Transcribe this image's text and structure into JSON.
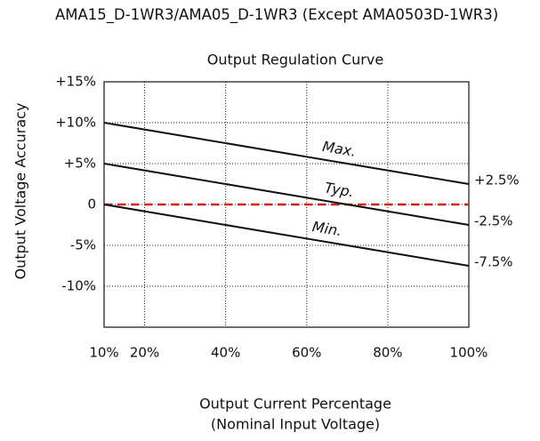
{
  "chart_data": {
    "type": "line",
    "title": "AMA15_D-1WR3/AMA05_D-1WR3 (Except AMA0503D-1WR3)",
    "subtitle": "Output Regulation Curve",
    "ylabel": "Output Voltage Accuracy",
    "xlabel": [
      "Output Current Percentage",
      "(Nominal Input Voltage)"
    ],
    "xlim": [
      10,
      100
    ],
    "ylim": [
      -15,
      15
    ],
    "xticks": [
      {
        "value": 10,
        "label": "10%"
      },
      {
        "value": 20,
        "label": "20%"
      },
      {
        "value": 40,
        "label": "40%"
      },
      {
        "value": 60,
        "label": "60%"
      },
      {
        "value": 80,
        "label": "80%"
      },
      {
        "value": 100,
        "label": "100%"
      }
    ],
    "yticks": [
      {
        "value": 15,
        "label": "+15%"
      },
      {
        "value": 10,
        "label": "+10%"
      },
      {
        "value": 5,
        "label": "+5%"
      },
      0,
      {
        "value": -5,
        "label": "-5%"
      },
      {
        "value": -10,
        "label": "-10%"
      }
    ],
    "grid": true,
    "reference_line": {
      "value": 0,
      "color": "#d42020"
    },
    "x": [
      10,
      100
    ],
    "series": [
      {
        "name": "Max.",
        "color": "#111111",
        "values": [
          10,
          2.5
        ],
        "value_labels": [
          null,
          "+2.5%"
        ]
      },
      {
        "name": "Typ.",
        "color": "#111111",
        "values": [
          5,
          -2.5
        ],
        "value_labels": [
          null,
          "-2.5%"
        ]
      },
      {
        "name": "Min.",
        "color": "#111111",
        "values": [
          0,
          -7.5
        ],
        "value_labels": [
          null,
          "-7.5%"
        ]
      }
    ]
  }
}
